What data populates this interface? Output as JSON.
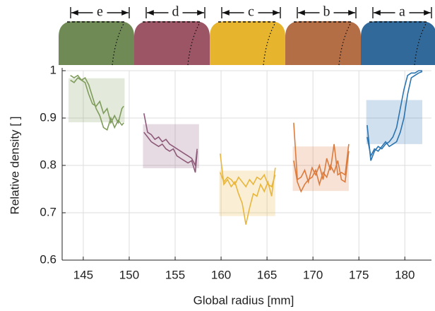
{
  "chart_data": {
    "type": "line",
    "xlabel": "Global radius [mm]",
    "ylabel": "Relative density [ ]",
    "xlim": [
      142.7,
      182.9
    ],
    "ylim": [
      0.6,
      1
    ],
    "xticks": [
      145,
      150,
      155,
      160,
      165,
      170,
      175,
      180
    ],
    "yticks": [
      0.6,
      0.7,
      0.8,
      0.9,
      1
    ],
    "grid": true,
    "segments": [
      {
        "label": "e",
        "color": "#7f9c5c",
        "top_color": "#6f8a54",
        "xlim": [
          143.4,
          149.5
        ],
        "band": [
          0.891,
          0.984
        ],
        "lines": [
          {
            "x": [
              143.6,
              144,
              144.4,
              144.8,
              145.2,
              145.6,
              146,
              146.4,
              146.8,
              147.2,
              147.6,
              148,
              148.4,
              148.8,
              149.2,
              149.4
            ],
            "values": [
              0.99,
              0.985,
              0.99,
              0.98,
              0.975,
              0.95,
              0.93,
              0.925,
              0.935,
              0.91,
              0.92,
              0.89,
              0.905,
              0.89,
              0.92,
              0.925
            ]
          },
          {
            "x": [
              143.6,
              144,
              144.4,
              144.8,
              145.2,
              145.6,
              146,
              146.4,
              146.8,
              147.2,
              147.6,
              148,
              148.4,
              148.8,
              149.2,
              149.4
            ],
            "values": [
              0.98,
              0.975,
              0.985,
              0.98,
              0.985,
              0.97,
              0.945,
              0.92,
              0.905,
              0.88,
              0.875,
              0.9,
              0.88,
              0.895,
              0.885,
              0.89
            ]
          }
        ]
      },
      {
        "label": "d",
        "color": "#8e5a7a",
        "top_color": "#9c5565",
        "xlim": [
          151.5,
          157.6
        ],
        "band": [
          0.794,
          0.887
        ],
        "lines": [
          {
            "x": [
              151.6,
              152,
              152.4,
              152.8,
              153.2,
              153.6,
              154,
              154.4,
              154.8,
              155.2,
              155.6,
              156,
              156.4,
              156.8,
              157.2,
              157.4
            ],
            "values": [
              0.91,
              0.87,
              0.865,
              0.855,
              0.86,
              0.85,
              0.855,
              0.845,
              0.84,
              0.835,
              0.83,
              0.825,
              0.82,
              0.815,
              0.8,
              0.835
            ]
          },
          {
            "x": [
              151.6,
              152,
              152.4,
              152.8,
              153.2,
              153.6,
              154,
              154.4,
              154.8,
              155.2,
              155.6,
              156,
              156.4,
              156.8,
              157.2,
              157.4
            ],
            "values": [
              0.87,
              0.86,
              0.85,
              0.845,
              0.84,
              0.845,
              0.835,
              0.83,
              0.835,
              0.82,
              0.815,
              0.81,
              0.805,
              0.81,
              0.785,
              0.83
            ]
          }
        ]
      },
      {
        "label": "c",
        "color": "#e9b63d",
        "top_color": "#e7b42e",
        "xlim": [
          159.8,
          165.9
        ],
        "band": [
          0.693,
          0.789
        ],
        "lines": [
          {
            "x": [
              159.9,
              160.3,
              160.7,
              161.1,
              161.5,
              161.9,
              162.3,
              162.7,
              163.1,
              163.5,
              163.9,
              164.3,
              164.7,
              165.1,
              165.5,
              165.9
            ],
            "values": [
              0.825,
              0.76,
              0.77,
              0.755,
              0.765,
              0.74,
              0.72,
              0.675,
              0.71,
              0.74,
              0.735,
              0.76,
              0.745,
              0.765,
              0.735,
              0.795
            ]
          },
          {
            "x": [
              159.9,
              160.3,
              160.7,
              161.1,
              161.5,
              161.9,
              162.3,
              162.7,
              163.1,
              163.5,
              163.9,
              164.3,
              164.7,
              165.1,
              165.5,
              165.9
            ],
            "values": [
              0.785,
              0.765,
              0.775,
              0.77,
              0.76,
              0.775,
              0.765,
              0.755,
              0.77,
              0.76,
              0.775,
              0.77,
              0.78,
              0.76,
              0.755,
              0.78
            ]
          }
        ]
      },
      {
        "label": "b",
        "color": "#db7c3e",
        "top_color": "#b46e46",
        "xlim": [
          167.8,
          173.9
        ],
        "band": [
          0.746,
          0.84
        ],
        "lines": [
          {
            "x": [
              167.9,
              168.3,
              168.7,
              169.1,
              169.5,
              169.9,
              170.3,
              170.7,
              171.1,
              171.5,
              171.9,
              172.3,
              172.7,
              173.1,
              173.5,
              173.9
            ],
            "values": [
              0.89,
              0.77,
              0.775,
              0.79,
              0.765,
              0.795,
              0.78,
              0.8,
              0.77,
              0.815,
              0.79,
              0.845,
              0.78,
              0.785,
              0.78,
              0.845
            ]
          },
          {
            "x": [
              167.9,
              168.3,
              168.7,
              169.1,
              169.5,
              169.9,
              170.3,
              170.7,
              171.1,
              171.5,
              171.9,
              172.3,
              172.7,
              173.1,
              173.5,
              173.9
            ],
            "values": [
              0.81,
              0.765,
              0.745,
              0.76,
              0.77,
              0.775,
              0.79,
              0.76,
              0.785,
              0.775,
              0.8,
              0.785,
              0.81,
              0.77,
              0.765,
              0.83
            ]
          }
        ]
      },
      {
        "label": "a",
        "color": "#2b74b0",
        "top_color": "#30699a",
        "xlim": [
          175.8,
          181.9
        ],
        "band": [
          0.845,
          0.938
        ],
        "lines": [
          {
            "x": [
              175.9,
              176.3,
              176.7,
              177.1,
              177.5,
              177.9,
              178.3,
              178.7,
              179.1,
              179.5,
              179.9,
              180.3,
              180.7,
              181.1,
              181.5,
              181.9
            ],
            "values": [
              0.885,
              0.81,
              0.83,
              0.84,
              0.835,
              0.845,
              0.85,
              0.86,
              0.88,
              0.92,
              0.96,
              0.99,
              0.995,
              0.995,
              1,
              1
            ]
          },
          {
            "x": [
              175.9,
              176.3,
              176.7,
              177.1,
              177.5,
              177.9,
              178.3,
              178.7,
              179.1,
              179.5,
              179.9,
              180.3,
              180.7,
              181.1,
              181.5,
              181.9
            ],
            "values": [
              0.86,
              0.82,
              0.835,
              0.83,
              0.84,
              0.85,
              0.84,
              0.845,
              0.85,
              0.87,
              0.9,
              0.95,
              0.985,
              0.99,
              0.995,
              0.998
            ]
          }
        ]
      }
    ]
  }
}
